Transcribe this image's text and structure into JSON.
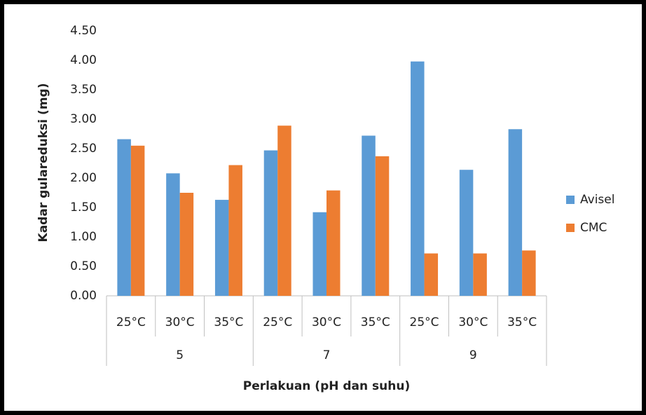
{
  "chart_data": {
    "type": "bar",
    "x_label": "Perlakuan (pH dan suhu)",
    "y_label": "Kadar gulareduksi (mg)",
    "categories": [
      "25°C",
      "30°C",
      "35°C",
      "25°C",
      "30°C",
      "35°C",
      "25°C",
      "30°C",
      "35°C"
    ],
    "category_groups": [
      "5",
      "7",
      "9"
    ],
    "series": [
      {
        "name": "Avisel",
        "color": "#5b9bd5",
        "values": [
          2.66,
          2.08,
          1.63,
          2.47,
          1.42,
          2.72,
          3.98,
          2.14,
          2.83
        ]
      },
      {
        "name": "CMC",
        "color": "#ed7d31",
        "values": [
          2.55,
          1.75,
          2.22,
          2.89,
          1.79,
          2.37,
          0.72,
          0.72,
          0.77
        ]
      }
    ],
    "ylim": [
      0,
      4.5
    ],
    "yticks": [
      {
        "value": 0,
        "label": "0.00"
      },
      {
        "value": 0.5,
        "label": "0.50"
      },
      {
        "value": 1,
        "label": "1.00"
      },
      {
        "value": 1.5,
        "label": "1.50"
      },
      {
        "value": 2,
        "label": "2.00"
      },
      {
        "value": 2.5,
        "label": "2.50"
      },
      {
        "value": 3,
        "label": "3.00"
      },
      {
        "value": 3.5,
        "label": "3.50"
      },
      {
        "value": 4,
        "label": "4.00"
      },
      {
        "value": 4.5,
        "label": "4.50"
      }
    ],
    "grid": false,
    "legend": "right"
  }
}
